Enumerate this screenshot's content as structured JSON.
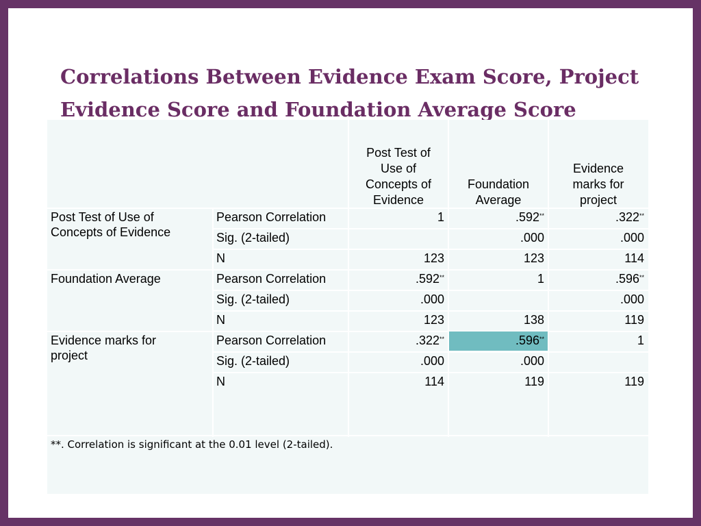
{
  "slide": {
    "title_line1": "Correlations Between Evidence Exam Score, Project",
    "title_line2": "Evidence Score and Foundation Average Score",
    "colors": {
      "border": "#663366",
      "title": "#6a2d64",
      "table_bg": "#f2f8f8",
      "highlight": "#70bcc0"
    }
  },
  "table": {
    "headers": {
      "col1": [
        "Post Test of",
        "Use of",
        "Concepts of",
        "Evidence"
      ],
      "col2": [
        "Foundation",
        "Average"
      ],
      "col3": [
        "Evidence",
        "marks for",
        "project"
      ]
    },
    "groups": [
      {
        "label_lines": [
          "Post Test of Use of",
          "Concepts of Evidence"
        ],
        "rows": [
          {
            "stat": "Pearson Correlation",
            "values": [
              "1",
              ".592",
              ".322"
            ],
            "stars": [
              "",
              "**",
              "**"
            ]
          },
          {
            "stat": "Sig. (2-tailed)",
            "values": [
              "",
              ".000",
              ".000"
            ],
            "stars": [
              "",
              "",
              ""
            ]
          },
          {
            "stat": "N",
            "values": [
              "123",
              "123",
              "114"
            ],
            "stars": [
              "",
              "",
              ""
            ]
          }
        ]
      },
      {
        "label_lines": [
          "Foundation Average"
        ],
        "rows": [
          {
            "stat": "Pearson Correlation",
            "values": [
              ".592",
              "1",
              ".596"
            ],
            "stars": [
              "**",
              "",
              "**"
            ]
          },
          {
            "stat": "Sig. (2-tailed)",
            "values": [
              ".000",
              "",
              ".000"
            ],
            "stars": [
              "",
              "",
              ""
            ]
          },
          {
            "stat": "N",
            "values": [
              "123",
              "138",
              "119"
            ],
            "stars": [
              "",
              "",
              ""
            ]
          }
        ]
      },
      {
        "label_lines": [
          "Evidence marks for",
          "project"
        ],
        "rows": [
          {
            "stat": "Pearson Correlation",
            "values": [
              ".322",
              ".596",
              "1"
            ],
            "stars": [
              "**",
              "**",
              ""
            ]
          },
          {
            "stat": "Sig. (2-tailed)",
            "values": [
              ".000",
              ".000",
              ""
            ],
            "stars": [
              "",
              "",
              ""
            ]
          },
          {
            "stat": "N",
            "values": [
              "114",
              "119",
              "119"
            ],
            "stars": [
              "",
              "",
              ""
            ]
          }
        ]
      }
    ],
    "footnote": "**. Correlation is significant at the 0.01 level (2-tailed)."
  }
}
